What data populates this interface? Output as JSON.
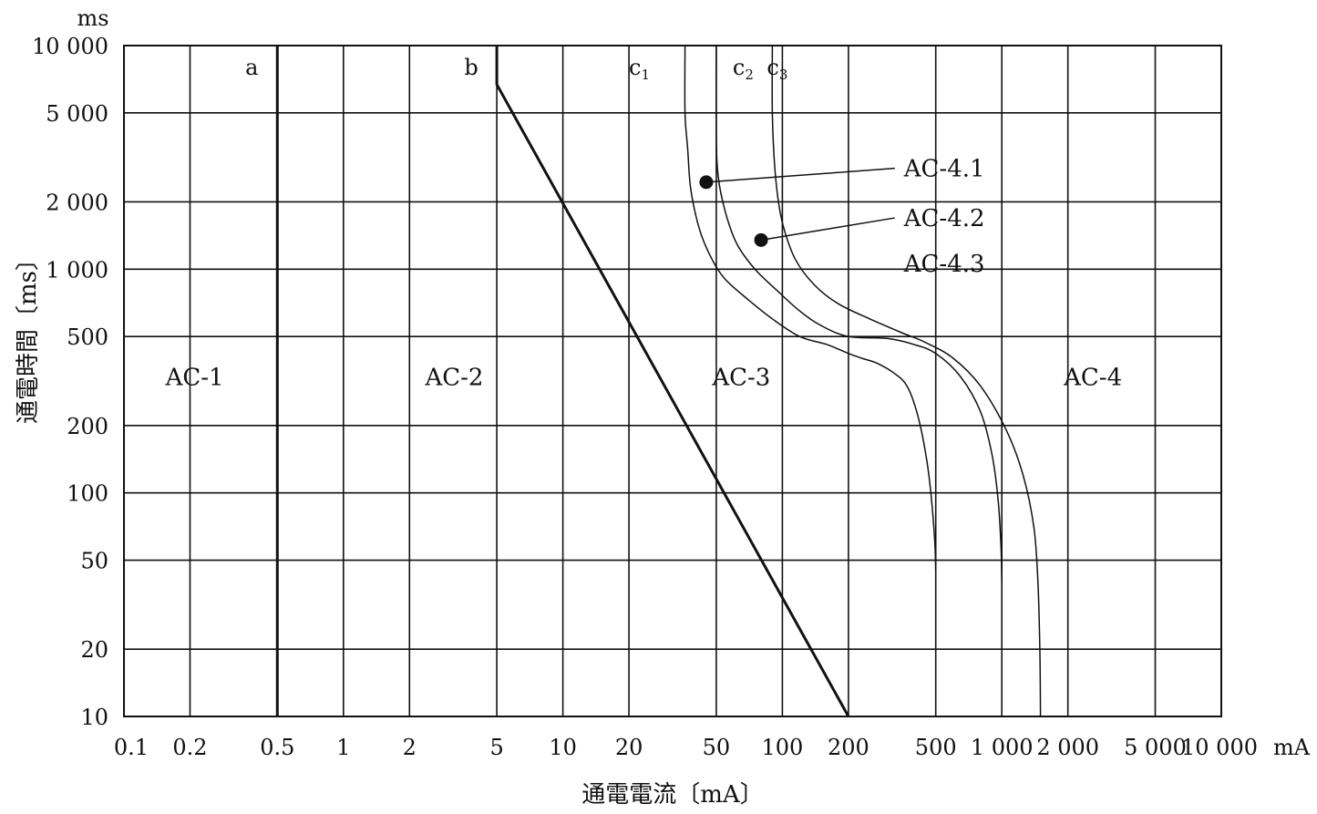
{
  "chart_data": {
    "type": "line",
    "title": "",
    "xlabel": "通電電流〔mA〕",
    "ylabel": "通電時間〔ms〕",
    "x_unit": "mA",
    "y_unit": "ms",
    "x_scale": "log",
    "y_scale": "log",
    "xlim": [
      0.1,
      10000
    ],
    "ylim": [
      10,
      10000
    ],
    "grid": true,
    "x_ticks": [
      0.1,
      0.2,
      0.5,
      1,
      2,
      5,
      10,
      20,
      50,
      100,
      200,
      500,
      1000,
      2000,
      5000,
      10000
    ],
    "x_tick_labels": [
      "0.1",
      "0.2",
      "0.5",
      "1",
      "2",
      "5",
      "10",
      "20",
      "50",
      "100",
      "200",
      "500",
      "1 000",
      "2 000",
      "5 000",
      "10 000"
    ],
    "y_ticks": [
      10,
      20,
      50,
      100,
      200,
      500,
      1000,
      2000,
      5000,
      10000
    ],
    "y_tick_labels": [
      "10",
      "20",
      "50",
      "100",
      "200",
      "500",
      "1 000",
      "2 000",
      "5 000",
      "10 000"
    ],
    "series": [
      {
        "name": "a",
        "label_main": "a",
        "label_sub": "",
        "thick": true,
        "points": [
          [
            0.5,
            10
          ],
          [
            0.5,
            10000
          ]
        ]
      },
      {
        "name": "b",
        "label_main": "b",
        "label_sub": "",
        "thick": true,
        "points": [
          [
            200,
            10
          ],
          [
            5,
            6700
          ],
          [
            5,
            10000
          ]
        ]
      },
      {
        "name": "c1",
        "label_main": "c",
        "label_sub": "1",
        "thick": false,
        "points": [
          [
            500,
            45
          ],
          [
            495,
            60
          ],
          [
            480,
            90
          ],
          [
            455,
            140
          ],
          [
            415,
            220
          ],
          [
            370,
            300
          ],
          [
            320,
            345
          ],
          [
            270,
            380
          ],
          [
            230,
            400
          ],
          [
            200,
            420
          ],
          [
            160,
            460
          ],
          [
            120,
            500
          ],
          [
            90,
            600
          ],
          [
            70,
            730
          ],
          [
            55,
            900
          ],
          [
            48,
            1100
          ],
          [
            43,
            1400
          ],
          [
            40,
            1800
          ],
          [
            38,
            2400
          ],
          [
            37,
            3500
          ],
          [
            36,
            5000
          ],
          [
            36,
            10000
          ]
        ]
      },
      {
        "name": "c2",
        "label_main": "c",
        "label_sub": "2",
        "thick": false,
        "points": [
          [
            1000,
            40
          ],
          [
            990,
            60
          ],
          [
            960,
            95
          ],
          [
            900,
            150
          ],
          [
            800,
            230
          ],
          [
            650,
            330
          ],
          [
            500,
            420
          ],
          [
            400,
            460
          ],
          [
            300,
            490
          ],
          [
            200,
            500
          ],
          [
            150,
            560
          ],
          [
            120,
            650
          ],
          [
            95,
            800
          ],
          [
            75,
            1000
          ],
          [
            62,
            1300
          ],
          [
            55,
            1800
          ],
          [
            51,
            2600
          ],
          [
            50,
            4000
          ],
          [
            50,
            10000
          ]
        ]
      },
      {
        "name": "c3",
        "label_main": "c",
        "label_sub": "3",
        "thick": false,
        "points": [
          [
            1500,
            10
          ],
          [
            1490,
            20
          ],
          [
            1460,
            40
          ],
          [
            1400,
            70
          ],
          [
            1250,
            120
          ],
          [
            1050,
            190
          ],
          [
            800,
            300
          ],
          [
            600,
            400
          ],
          [
            450,
            470
          ],
          [
            350,
            520
          ],
          [
            250,
            600
          ],
          [
            180,
            700
          ],
          [
            140,
            850
          ],
          [
            115,
            1100
          ],
          [
            102,
            1500
          ],
          [
            96,
            2000
          ],
          [
            92,
            3000
          ],
          [
            90,
            5000
          ],
          [
            90,
            10000
          ]
        ]
      }
    ],
    "regions": [
      {
        "label": "AC-1",
        "x": 0.21,
        "y": 330
      },
      {
        "label": "AC-2",
        "x": 3.2,
        "y": 330
      },
      {
        "label": "AC-3",
        "x": 65,
        "y": 330
      },
      {
        "label": "AC-4",
        "x": 2600,
        "y": 330
      }
    ],
    "annotations": [
      {
        "label": "AC-4.1",
        "dot": [
          45,
          2450
        ],
        "label_at": [
          600,
          2800
        ]
      },
      {
        "label": "AC-4.2",
        "dot": [
          80,
          1350
        ],
        "label_at": [
          600,
          1680
        ]
      },
      {
        "label": "AC-4.3",
        "label_at": [
          600,
          1050
        ]
      }
    ]
  }
}
